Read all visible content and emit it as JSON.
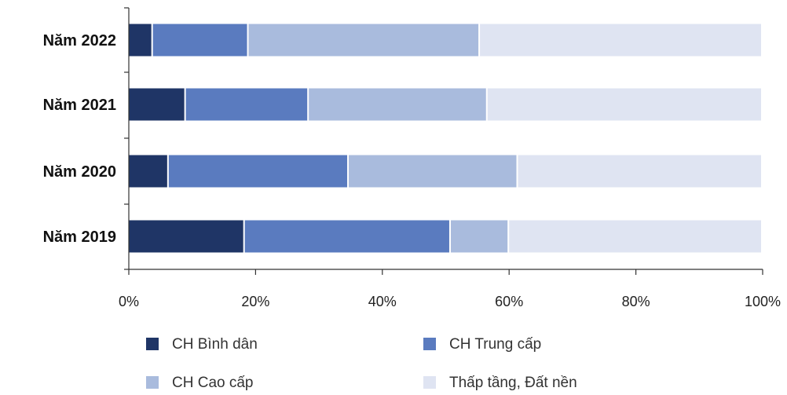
{
  "chart_data": {
    "type": "bar",
    "orientation": "horizontal",
    "stacked": "percent",
    "categories": [
      "Năm 2022",
      "Năm 2021",
      "Năm 2020",
      "Năm 2019"
    ],
    "series": [
      {
        "name": "CH Bình dân",
        "color": "#1f3566",
        "values": [
          3.8,
          9.0,
          6.3,
          18.3
        ]
      },
      {
        "name": "CH Trung cấp",
        "color": "#5a7bbf",
        "values": [
          15.1,
          19.4,
          28.4,
          32.5
        ]
      },
      {
        "name": "CH Cao cấp",
        "color": "#a9bbdd",
        "values": [
          36.5,
          28.2,
          26.7,
          9.2
        ]
      },
      {
        "name": "Thấp tầng, Đất nền",
        "color": "#dfe4f2",
        "values": [
          44.6,
          43.4,
          38.6,
          40.0
        ]
      }
    ],
    "xlim": [
      0,
      100
    ],
    "xticks": [
      "0%",
      "20%",
      "40%",
      "60%",
      "80%",
      "100%"
    ],
    "grid": false,
    "legend_position": "bottom",
    "title": "",
    "xlabel": "",
    "ylabel": ""
  }
}
